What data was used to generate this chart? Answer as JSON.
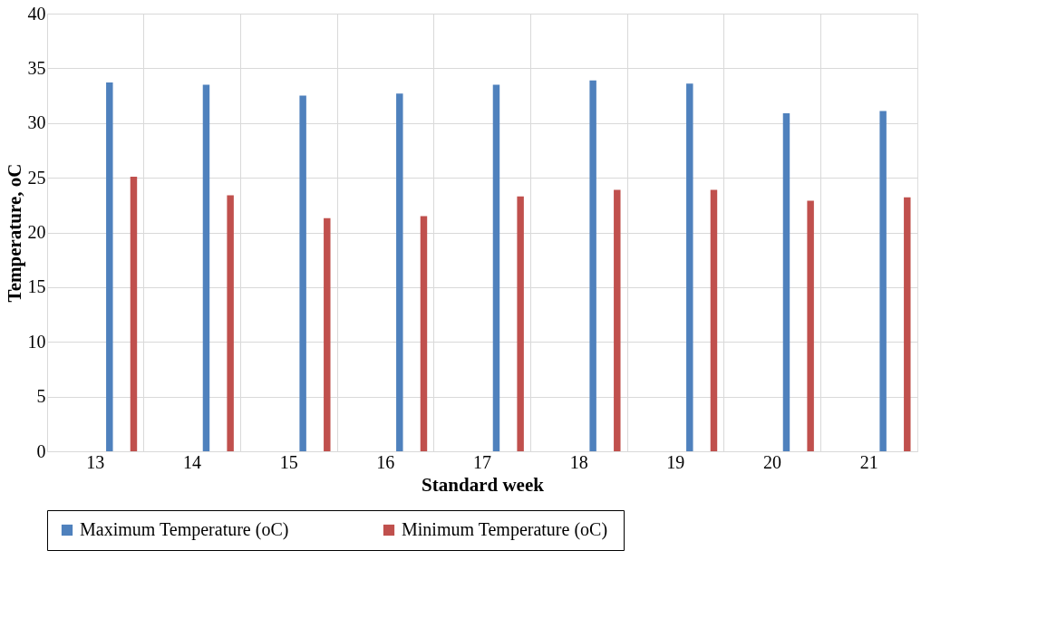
{
  "chart_data": {
    "type": "bar",
    "xlabel": "Standard week",
    "ylabel": "Temperature, oC",
    "categories": [
      "13",
      "14",
      "15",
      "16",
      "17",
      "18",
      "19",
      "20",
      "21"
    ],
    "series": [
      {
        "name": "Maximum Temperature (oC)",
        "color": "#4f81bd",
        "values": [
          33.7,
          33.5,
          32.5,
          32.7,
          33.5,
          33.9,
          33.6,
          30.9,
          31.1
        ]
      },
      {
        "name": "Minimum  Temperature (oC)",
        "color": "#c0504d",
        "values": [
          25.1,
          23.4,
          21.3,
          21.5,
          23.3,
          23.9,
          23.9,
          22.9,
          23.2
        ]
      }
    ],
    "ylim": [
      0,
      40
    ],
    "yticks": [
      0,
      5,
      10,
      15,
      20,
      25,
      30,
      35,
      40
    ],
    "grid": true,
    "legend": "bottom"
  }
}
